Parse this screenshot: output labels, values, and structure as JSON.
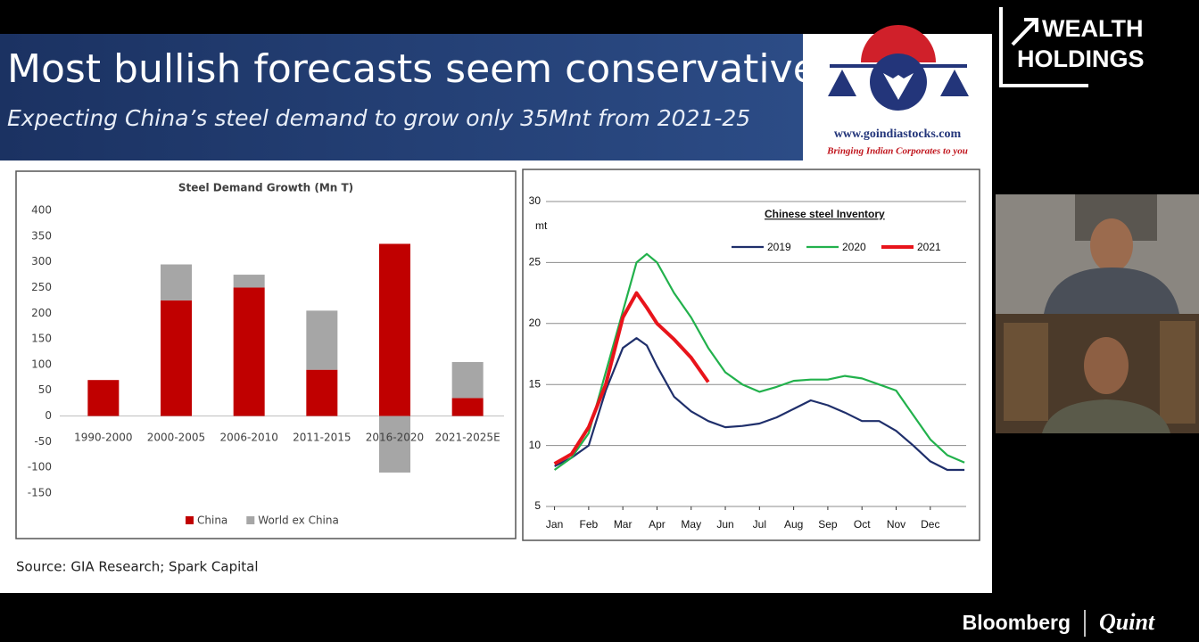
{
  "header": {
    "title": "Most bullish forecasts seem conservative",
    "subtitle": "Expecting China’s steel demand to grow only 35Mnt from 2021-25"
  },
  "logo": {
    "url": "www.goindiastocks.com",
    "tagline": "Bringing Indian Corporates to you"
  },
  "source": "Source: GIA Research; Spark Capital",
  "brand": {
    "line1": "WEALTH",
    "line2": "HOLDINGS"
  },
  "footer": {
    "left": "Bloomberg",
    "right": "Quint"
  },
  "chart_data": [
    {
      "type": "bar",
      "title": "Steel Demand Growth (Mn T)",
      "categories": [
        "1990-2000",
        "2000-2005",
        "2006-2010",
        "2011-2015",
        "2016-2020",
        "2021-2025E"
      ],
      "series": [
        {
          "name": "China",
          "color": "#c00000",
          "values": [
            70,
            225,
            250,
            90,
            335,
            35
          ]
        },
        {
          "name": "World ex China",
          "color": "#a6a6a6",
          "values": [
            0,
            70,
            25,
            115,
            -110,
            70
          ]
        }
      ],
      "ylim": [
        -150,
        400
      ],
      "yticks": [
        -150,
        -100,
        -50,
        0,
        50,
        100,
        150,
        200,
        250,
        300,
        350,
        400
      ],
      "legend": "bottom"
    },
    {
      "type": "line",
      "title": "Chinese steel Inventory",
      "ylabel": "mt",
      "x": [
        1,
        1.5,
        2,
        2.5,
        3,
        3.4,
        3.7,
        4,
        4.5,
        5,
        5.5,
        6,
        6.5,
        7,
        7.5,
        8,
        8.5,
        9,
        9.5,
        10,
        10.5,
        11,
        11.5,
        12,
        12.5,
        13
      ],
      "series": [
        {
          "name": "2019",
          "color": "#1f2f6b",
          "values": [
            8.3,
            9,
            10,
            14.5,
            18,
            18.8,
            18.2,
            16.5,
            14,
            12.8,
            12,
            11.5,
            11.6,
            11.8,
            12.3,
            13,
            13.7,
            13.3,
            12.7,
            12,
            12,
            11.2,
            10,
            8.7,
            8,
            8
          ]
        },
        {
          "name": "2020",
          "color": "#22b14c",
          "values": [
            8,
            9,
            11,
            16,
            21,
            25,
            25.7,
            25,
            22.5,
            20.5,
            18,
            16,
            15,
            14.4,
            14.8,
            15.3,
            15.4,
            15.4,
            15.7,
            15.5,
            15,
            14.5,
            12.5,
            10.5,
            9.2,
            8.6
          ]
        },
        {
          "name": "2021",
          "color": "#e8141b",
          "values": [
            8.5,
            9.3,
            11.5,
            15,
            20.5,
            22.5,
            21.3,
            20,
            18.7,
            17.2,
            15.2,
            null,
            null,
            null,
            null,
            null,
            null,
            null,
            null,
            null,
            null,
            null,
            null,
            null,
            null,
            null
          ]
        }
      ],
      "xlim": [
        0.75,
        13.05
      ],
      "xticks": [
        {
          "value": 1,
          "label": "Jan"
        },
        {
          "value": 2,
          "label": "Feb"
        },
        {
          "value": 3,
          "label": "Mar"
        },
        {
          "value": 4,
          "label": "Apr"
        },
        {
          "value": 5,
          "label": "May"
        },
        {
          "value": 6,
          "label": "Jun"
        },
        {
          "value": 7,
          "label": "Jul"
        },
        {
          "value": 8,
          "label": "Aug"
        },
        {
          "value": 9,
          "label": "Sep"
        },
        {
          "value": 10,
          "label": "Oct"
        },
        {
          "value": 11,
          "label": "Nov"
        },
        {
          "value": 12,
          "label": "Dec"
        }
      ],
      "ylim": [
        5,
        30
      ],
      "yticks": [
        5,
        10,
        15,
        20,
        25,
        30
      ],
      "grid": true,
      "legend": "top"
    }
  ]
}
